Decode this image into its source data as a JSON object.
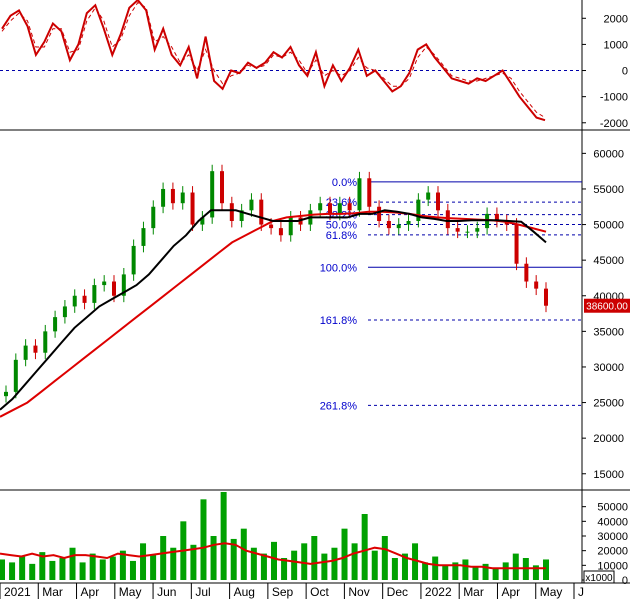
{
  "chart_data": [
    {
      "type": "line",
      "panel": "oscillator",
      "ylim": [
        -2200,
        2700
      ],
      "yticks": [
        "2000",
        "1000",
        "0",
        "-1000",
        "-2000"
      ],
      "zero_line_color": "#0000aa",
      "series": [
        {
          "color": "#cc0000",
          "style": "solid",
          "values": [
            1600,
            2100,
            2300,
            1700,
            600,
            1100,
            1800,
            1500,
            400,
            1000,
            2200,
            2500,
            1600,
            600,
            1400,
            2400,
            2700,
            2300,
            800,
            1600,
            600,
            200,
            900,
            -300,
            1300,
            -400,
            -700,
            0,
            -100,
            300,
            100,
            300,
            700,
            500,
            900,
            200,
            -200,
            700,
            -600,
            200,
            -400,
            100,
            800,
            -200,
            0,
            -400,
            -800,
            -600,
            -100,
            800,
            1000,
            500,
            100,
            -300,
            -400,
            -500,
            -300,
            -400,
            -200,
            0,
            -500,
            -1000,
            -1400,
            -1800,
            -1900
          ]
        },
        {
          "color": "#cc0000",
          "style": "dashed",
          "values": [
            1500,
            1900,
            2200,
            1900,
            900,
            900,
            1600,
            1600,
            700,
            800,
            1900,
            2400,
            1900,
            900,
            1200,
            2100,
            2600,
            2400,
            1100,
            1300,
            900,
            300,
            600,
            0,
            800,
            0,
            -500,
            -200,
            -100,
            200,
            100,
            200,
            600,
            500,
            700,
            400,
            -100,
            400,
            -200,
            0,
            -200,
            0,
            500,
            100,
            0,
            -300,
            -600,
            -600,
            -300,
            500,
            900,
            600,
            200,
            -200,
            -300,
            -400,
            -400,
            -300,
            -200,
            -100,
            -300,
            -800,
            -1200,
            -1600,
            -1800
          ]
        }
      ]
    },
    {
      "type": "candlestick",
      "panel": "price",
      "ylim": [
        13000,
        63000
      ],
      "yticks": [
        "60000",
        "55000",
        "50000",
        "45000",
        "40000",
        "35000",
        "30000",
        "25000",
        "20000",
        "15000"
      ],
      "last_price_label": "38600.00",
      "close": [
        26500,
        31000,
        33000,
        32000,
        35000,
        37000,
        38500,
        40000,
        39000,
        41500,
        42000,
        40000,
        43000,
        47000,
        49500,
        52500,
        55000,
        53000,
        54500,
        50000,
        51000,
        57500,
        53000,
        50500,
        52000,
        53500,
        50000,
        49500,
        48500,
        51000,
        50000,
        52000,
        53000,
        51500,
        53000,
        52000,
        56500,
        52500,
        50500,
        49500,
        50000,
        50500,
        53500,
        54500,
        52000,
        49500,
        49000,
        49000,
        49500,
        51500,
        50500,
        50000,
        44500,
        42000,
        41000,
        38600
      ],
      "ma_black": [
        24000,
        25500,
        27500,
        29500,
        31500,
        33500,
        35500,
        37000,
        38500,
        39500,
        40500,
        41500,
        43000,
        45000,
        47000,
        48500,
        50500,
        52000,
        52000,
        52000,
        51500,
        51000,
        50500,
        50500,
        50500,
        51000,
        51000,
        51000,
        51000,
        51500,
        51500,
        52000,
        51800,
        51500,
        51000,
        50800,
        50500,
        50500,
        50600,
        50600,
        50600,
        50500,
        50400,
        49000,
        47500
      ],
      "ma_red": [
        23000,
        24000,
        25000,
        26500,
        28000,
        29500,
        31000,
        32500,
        34000,
        35500,
        37000,
        38500,
        40000,
        41500,
        43000,
        44500,
        46000,
        47500,
        48500,
        49500,
        50500,
        51000,
        51200,
        51400,
        51500,
        51500,
        51600,
        51800,
        51800,
        51700,
        51500,
        51200,
        51000,
        50900,
        50800,
        50700,
        50600,
        50400,
        50000,
        49500,
        49000
      ],
      "fibonacci": [
        {
          "label": "0.0%",
          "price": 56000,
          "style": "solid"
        },
        {
          "label": "23.6%",
          "price": 53150,
          "style": "dashed"
        },
        {
          "label": "38.2%",
          "price": 51400,
          "style": "dashed"
        },
        {
          "label": "50.0%",
          "price": 50000,
          "style": "dashed"
        },
        {
          "label": "61.8%",
          "price": 48550,
          "style": "dashed"
        },
        {
          "label": "100.0%",
          "price": 44000,
          "style": "solid"
        },
        {
          "label": "161.8%",
          "price": 36600,
          "style": "dashed"
        },
        {
          "label": "261.8%",
          "price": 24600,
          "style": "dashed"
        }
      ]
    },
    {
      "type": "bar",
      "panel": "volume",
      "ylim": [
        0,
        60000
      ],
      "yticks": [
        "50000",
        "40000",
        "30000",
        "20000",
        "10000",
        "0"
      ],
      "unit_label": "x1000",
      "values": [
        14000,
        12000,
        16000,
        11000,
        19000,
        13000,
        15000,
        22000,
        12000,
        18000,
        14000,
        16000,
        20000,
        13000,
        25000,
        17000,
        30000,
        22000,
        40000,
        24000,
        55000,
        30000,
        60000,
        28000,
        35000,
        22000,
        18000,
        26000,
        15000,
        20000,
        25000,
        30000,
        18000,
        22000,
        35000,
        25000,
        45000,
        20000,
        30000,
        15000,
        18000,
        25000,
        12000,
        16000,
        10000,
        12000,
        14000,
        9000,
        11000,
        8000,
        12000,
        18000,
        15000,
        10000,
        14000
      ],
      "ma_values": [
        18000,
        17000,
        16000,
        18000,
        16000,
        17000,
        15000,
        17000,
        17000,
        16000,
        15000,
        18000,
        17000,
        16000,
        17000,
        18000,
        19000,
        20000,
        21000,
        22000,
        24000,
        25000,
        24000,
        20000,
        18000,
        16000,
        14000,
        13000,
        12000,
        11000,
        12000,
        13000,
        15000,
        18000,
        20000,
        22000,
        21000,
        18000,
        15000,
        13000,
        11000,
        10000,
        10000,
        10000,
        9000,
        9000,
        8000,
        8000,
        8000,
        8000,
        8000,
        8000
      ]
    }
  ],
  "x_axis": {
    "labels": [
      "2021",
      "Mar",
      "Apr",
      "May",
      "Jun",
      "Jul",
      "Aug",
      "Sep",
      "Oct",
      "Nov",
      "Dec",
      "2022",
      "Mar",
      "Apr",
      "May",
      "J"
    ]
  }
}
